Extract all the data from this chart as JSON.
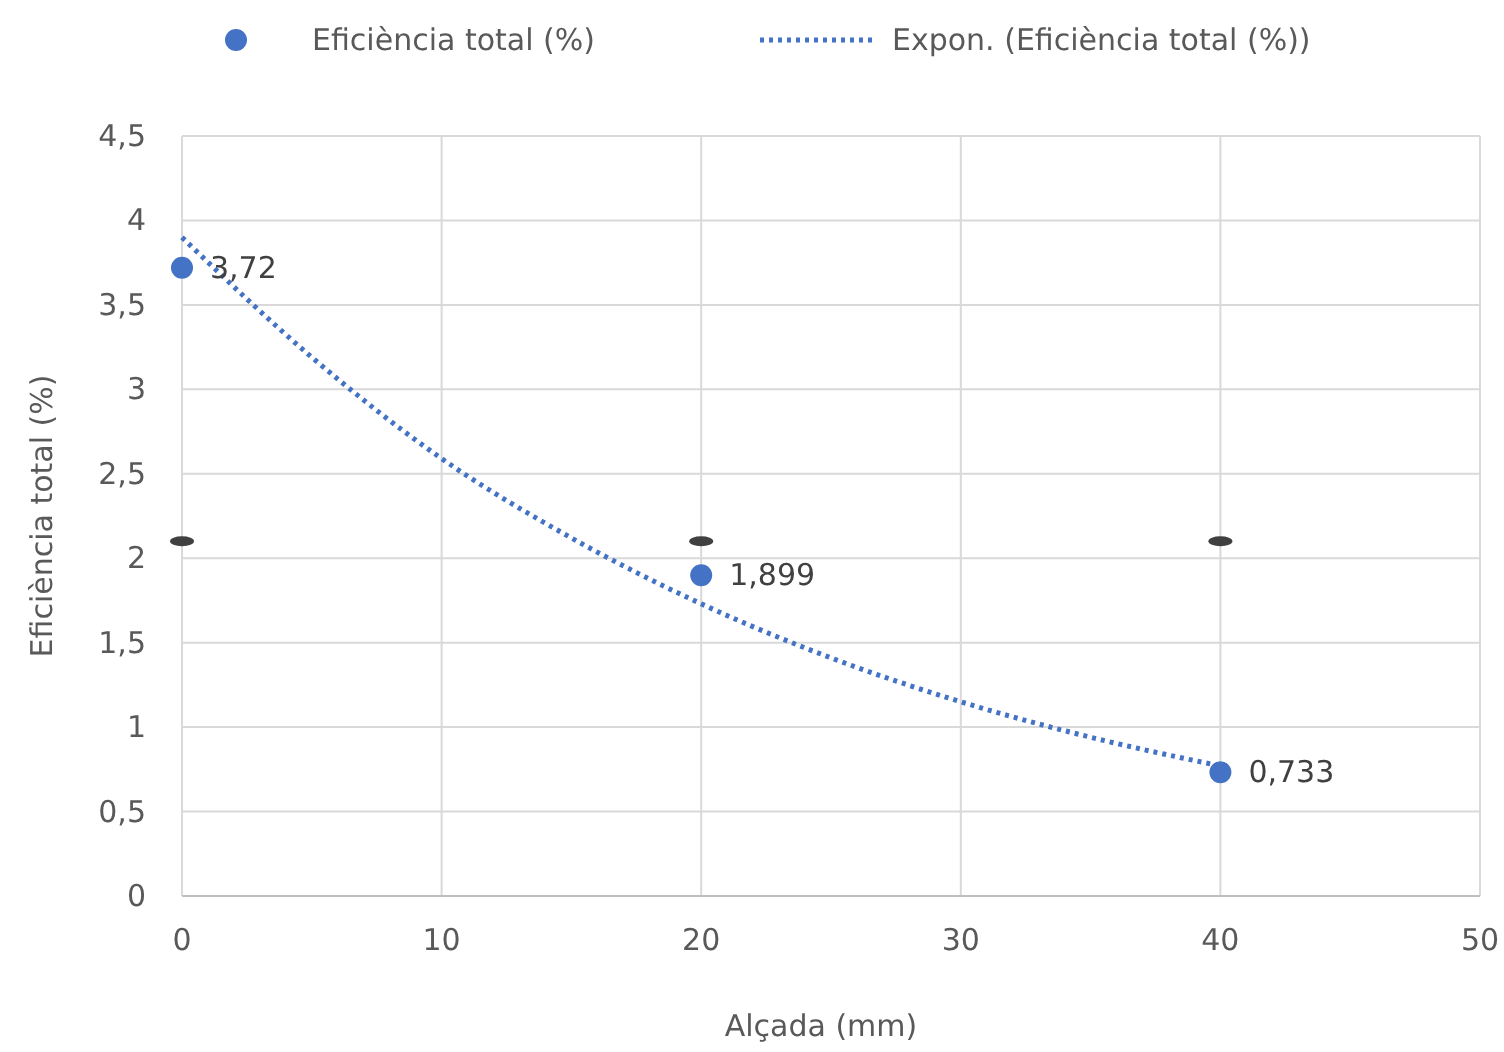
{
  "chart_data": {
    "type": "scatter",
    "xlabel": "Alçada (mm)",
    "ylabel": "Eficiència total (%)",
    "xlim": [
      0,
      50
    ],
    "xticks": [
      0,
      10,
      20,
      30,
      40,
      50
    ],
    "ylim": [
      0,
      4.5
    ],
    "yticks": [
      0,
      {
        "value": 0.5,
        "label": "0,5"
      },
      1,
      {
        "value": 1.5,
        "label": "1,5"
      },
      2,
      {
        "value": 2.5,
        "label": "2,5"
      },
      3,
      {
        "value": 3.5,
        "label": "3,5"
      },
      4,
      {
        "value": 4.5,
        "label": "4,5"
      }
    ],
    "grid": true,
    "legend": "top",
    "series": [
      {
        "name": "Eficiència total (%)",
        "marker": "circle",
        "color": "#4472c4",
        "x": [
          0,
          20,
          40
        ],
        "values": [
          3.72,
          1.899,
          0.733
        ],
        "value_labels": [
          "3,72",
          "1,899",
          "0,733"
        ]
      },
      {
        "name": "Expon. (Eficiència total (%))",
        "type": "line",
        "line_style": "dotted",
        "marker": "none",
        "color": "#4472c4",
        "x": [
          0,
          5,
          10,
          15,
          20,
          25,
          30,
          35,
          40
        ],
        "values": [
          3.9,
          3.19,
          2.59,
          2.12,
          1.73,
          1.41,
          1.15,
          0.94,
          0.77
        ]
      },
      {
        "type": "scatter",
        "color": "#404040",
        "x": [
          0,
          20,
          40
        ],
        "values": [
          2.1,
          2.1,
          2.1
        ]
      }
    ]
  }
}
